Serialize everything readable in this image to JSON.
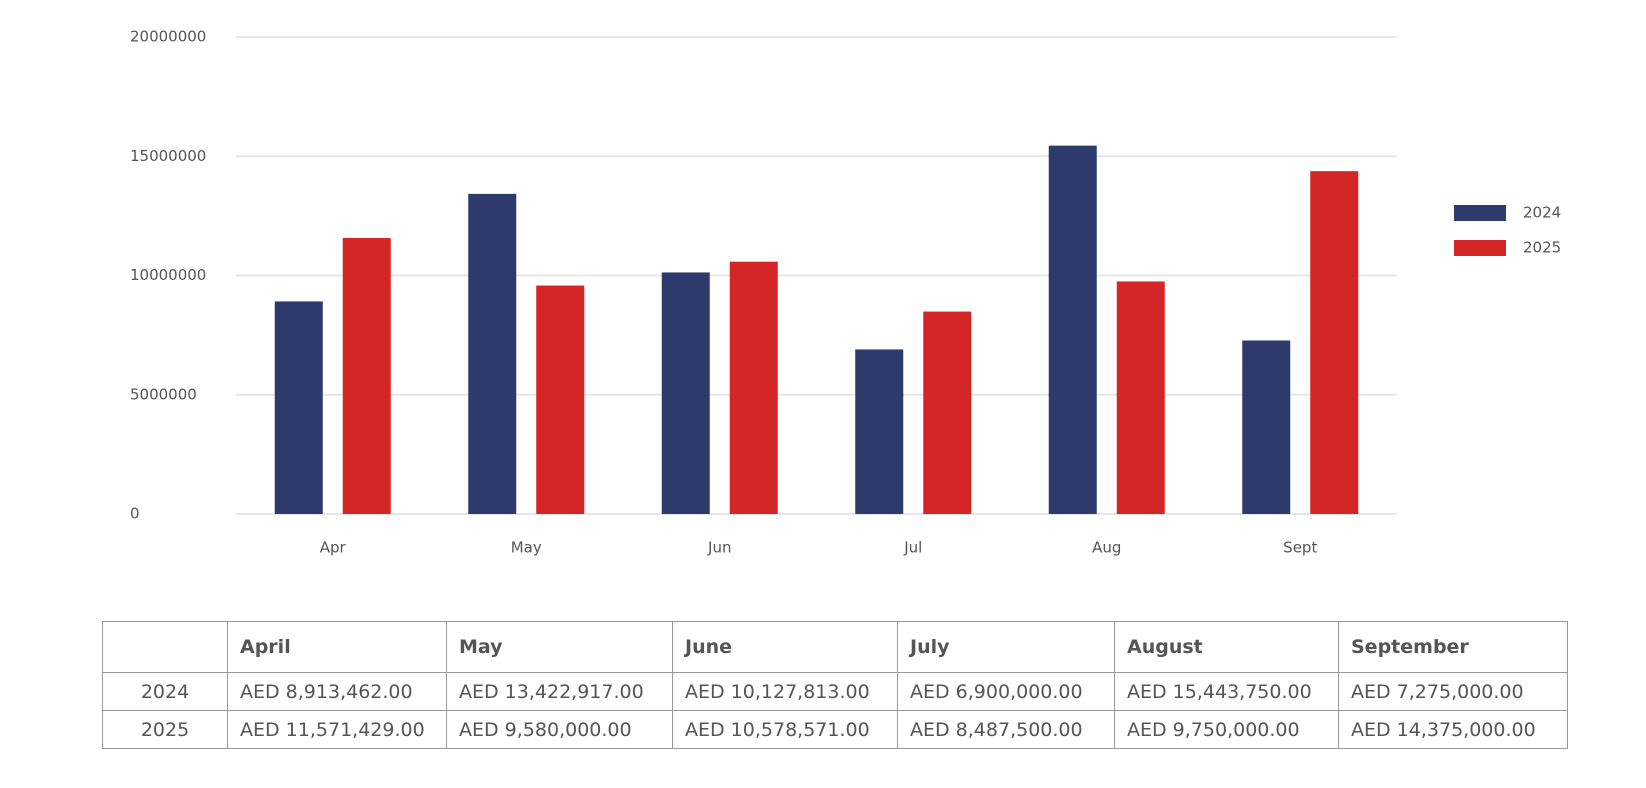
{
  "chart_data": {
    "type": "bar",
    "categories": [
      "Apr",
      "May",
      "Jun",
      "Jul",
      "Aug",
      "Sept"
    ],
    "series": [
      {
        "name": "2024",
        "color": "#2e3a6b",
        "values": [
          8913462,
          13422917,
          10127813,
          6900000,
          15443750,
          7275000
        ]
      },
      {
        "name": "2025",
        "color": "#d42626",
        "values": [
          11571429,
          9580000,
          10578571,
          8487500,
          9750000,
          14375000
        ]
      }
    ],
    "ylim": [
      0,
      20000000
    ],
    "yticks": [
      0,
      5000000,
      10000000,
      15000000,
      20000000
    ],
    "grid": true,
    "legend": "right"
  },
  "table": {
    "columns": [
      "April",
      "May",
      "June",
      "July",
      "August",
      "September"
    ],
    "rows": [
      {
        "label": "2024",
        "cells": [
          "AED 8,913,462.00",
          "AED 13,422,917.00",
          "AED 10,127,813.00",
          "AED 6,900,000.00",
          "AED 15,443,750.00",
          "AED 7,275,000.00"
        ]
      },
      {
        "label": "2025",
        "cells": [
          "AED 11,571,429.00",
          "AED 9,580,000.00",
          "AED 10,578,571.00",
          "AED 8,487,500.00",
          "AED 9,750,000.00",
          "AED 14,375,000.00"
        ]
      }
    ]
  }
}
